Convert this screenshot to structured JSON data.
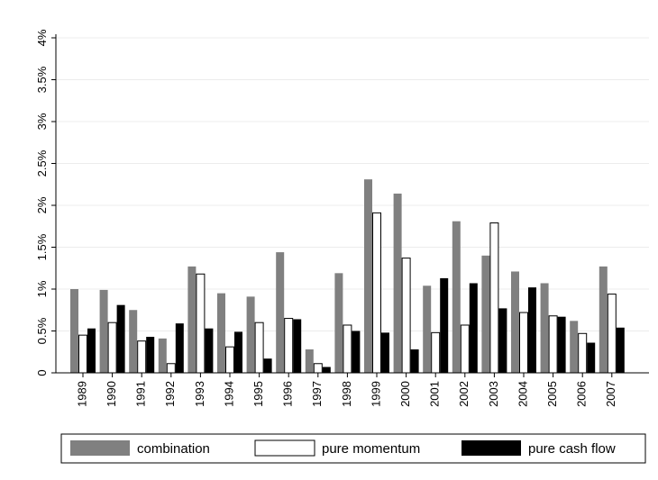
{
  "chart_data": {
    "type": "bar",
    "title": "",
    "xlabel": "",
    "ylabel": "",
    "ylim": [
      0,
      4
    ],
    "y_ticks": [
      {
        "value": 0,
        "label": "0"
      },
      {
        "value": 0.5,
        "label": "0.5%"
      },
      {
        "value": 1,
        "label": "1%"
      },
      {
        "value": 1.5,
        "label": "1.5%"
      },
      {
        "value": 2,
        "label": "2%"
      },
      {
        "value": 2.5,
        "label": "2.5%"
      },
      {
        "value": 3,
        "label": "3%"
      },
      {
        "value": 3.5,
        "label": "3.5%"
      },
      {
        "value": 4,
        "label": "4%"
      }
    ],
    "grid": true,
    "legend_position": "bottom",
    "categories": [
      "1989",
      "1990",
      "1991",
      "1992",
      "1993",
      "1994",
      "1995",
      "1996",
      "1997",
      "1998",
      "1999",
      "2000",
      "2001",
      "2002",
      "2003",
      "2004",
      "2005",
      "2006",
      "2007"
    ],
    "series": [
      {
        "name": "combination",
        "color": "#808080",
        "values": [
          1.0,
          0.99,
          0.75,
          0.41,
          1.27,
          0.95,
          0.91,
          1.44,
          0.28,
          1.19,
          2.31,
          2.14,
          1.04,
          1.81,
          1.4,
          1.21,
          1.07,
          0.62,
          1.27
        ]
      },
      {
        "name": "pure momentum",
        "color": "#ffffff",
        "values": [
          0.45,
          0.6,
          0.38,
          0.11,
          1.18,
          0.31,
          0.6,
          0.65,
          0.11,
          0.57,
          1.91,
          1.37,
          0.48,
          0.57,
          1.79,
          0.72,
          0.68,
          0.47,
          0.94
        ]
      },
      {
        "name": "pure cash flow",
        "color": "#000000",
        "values": [
          0.53,
          0.81,
          0.43,
          0.59,
          0.53,
          0.49,
          0.17,
          0.64,
          0.07,
          0.5,
          0.48,
          0.28,
          1.13,
          1.07,
          0.77,
          1.02,
          0.67,
          0.36,
          0.54
        ]
      }
    ]
  }
}
